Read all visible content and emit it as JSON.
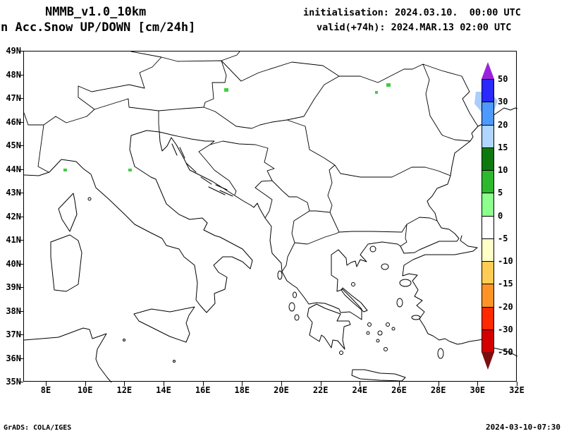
{
  "header": {
    "model": "NMMB_v1.0_10km",
    "variable": "n Acc.Snow UP/DOWN [cm/24h]",
    "initialisation": "initialisation: 2024.03.10.  00:00 UTC",
    "valid": "valid(+74h): 2024.MAR.13 02:00 UTC"
  },
  "map": {
    "lat_labels": [
      "49N",
      "48N",
      "47N",
      "46N",
      "45N",
      "44N",
      "43N",
      "42N",
      "41N",
      "40N",
      "39N",
      "38N",
      "37N",
      "36N",
      "35N"
    ],
    "lon_labels": [
      "8E",
      "10E",
      "12E",
      "14E",
      "16E",
      "18E",
      "20E",
      "22E",
      "24E",
      "26E",
      "28E",
      "30E",
      "32E"
    ],
    "snow_patch_colors": {
      "light_blue": "#aaccff",
      "dark_blue": "#2a2aff",
      "green": "#44cc44"
    }
  },
  "colorbar": {
    "labels": [
      "50",
      "30",
      "20",
      "15",
      "10",
      "5",
      "0",
      "-5",
      "-10",
      "-15",
      "-20",
      "-30",
      "-50"
    ],
    "segment_colors": [
      "#2a2aff",
      "#4d9aff",
      "#b0d5ff",
      "#0e7a0e",
      "#2eb82e",
      "#8cff8c",
      "#ffffff",
      "#ffffc8",
      "#ffcc55",
      "#ff9426",
      "#ff2a00",
      "#d40000"
    ],
    "arrow_top_color": "#9922dd",
    "arrow_bottom_color": "#7a0f0f"
  },
  "footer": {
    "left": "GrADS: COLA/IGES",
    "right": "2024-03-10-07:30"
  }
}
